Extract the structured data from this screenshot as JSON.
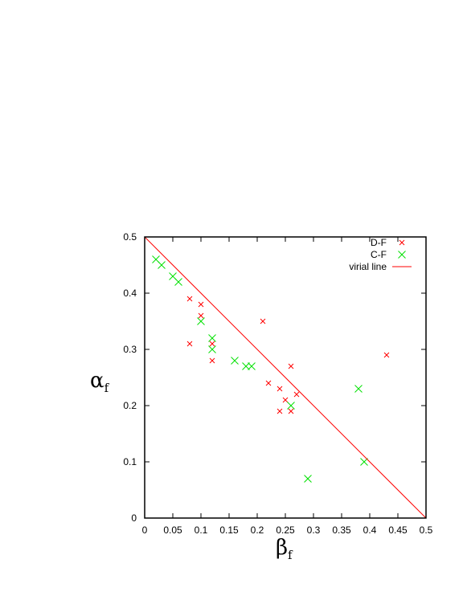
{
  "chart_data": {
    "type": "scatter",
    "xlabel": {
      "main": "β",
      "sub": "f"
    },
    "ylabel": {
      "main": "α",
      "sub": "f"
    },
    "xlim": [
      0,
      0.5
    ],
    "ylim": [
      0,
      0.5
    ],
    "xticks": [
      "0",
      "0.05",
      "0.1",
      "0.15",
      "0.2",
      "0.25",
      "0.3",
      "0.35",
      "0.4",
      "0.45",
      "0.5"
    ],
    "yticks": [
      "0",
      "0.1",
      "0.2",
      "0.3",
      "0.4",
      "0.5"
    ],
    "grid": false,
    "legend_position": "top-right",
    "series": [
      {
        "name": "D-F",
        "color": "#ff0000",
        "marker": "x-small",
        "points": [
          [
            0.08,
            0.39
          ],
          [
            0.1,
            0.38
          ],
          [
            0.1,
            0.36
          ],
          [
            0.08,
            0.31
          ],
          [
            0.12,
            0.31
          ],
          [
            0.12,
            0.28
          ],
          [
            0.21,
            0.35
          ],
          [
            0.26,
            0.27
          ],
          [
            0.22,
            0.24
          ],
          [
            0.24,
            0.23
          ],
          [
            0.27,
            0.22
          ],
          [
            0.25,
            0.21
          ],
          [
            0.24,
            0.19
          ],
          [
            0.26,
            0.19
          ],
          [
            0.43,
            0.29
          ]
        ]
      },
      {
        "name": "C-F",
        "color": "#00e000",
        "marker": "x-large",
        "points": [
          [
            0.02,
            0.46
          ],
          [
            0.03,
            0.45
          ],
          [
            0.05,
            0.43
          ],
          [
            0.06,
            0.42
          ],
          [
            0.1,
            0.35
          ],
          [
            0.12,
            0.32
          ],
          [
            0.12,
            0.3
          ],
          [
            0.16,
            0.28
          ],
          [
            0.18,
            0.27
          ],
          [
            0.19,
            0.27
          ],
          [
            0.26,
            0.2
          ],
          [
            0.29,
            0.07
          ],
          [
            0.38,
            0.23
          ],
          [
            0.39,
            0.1
          ]
        ]
      },
      {
        "name": "virial line",
        "color": "#ff0000",
        "type": "line",
        "points": [
          [
            0,
            0.5
          ],
          [
            0.5,
            0
          ]
        ]
      }
    ]
  }
}
